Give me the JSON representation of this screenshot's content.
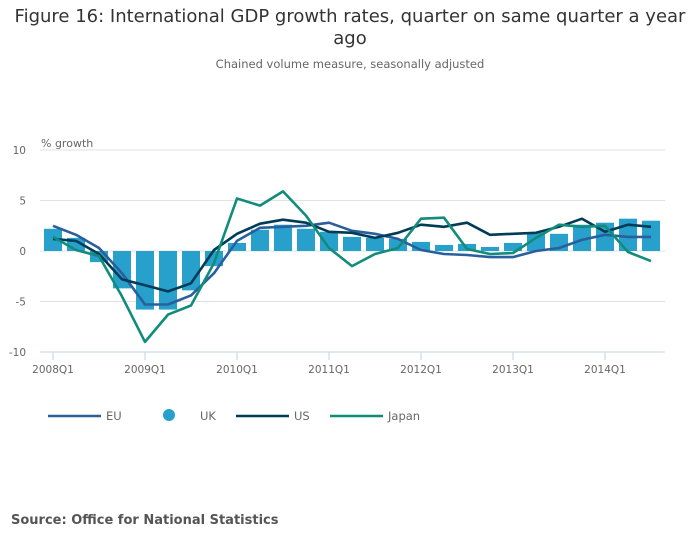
{
  "header": {
    "title": "Figure 16: International GDP growth rates, quarter on same quarter a year ago",
    "subtitle": "Chained volume measure, seasonally adjusted"
  },
  "footer": {
    "source": "Source: Office for National Statistics"
  },
  "chart_data": {
    "type": "bar+line",
    "title": "Figure 16: International GDP growth rates, quarter on same quarter a year ago",
    "subtitle": "Chained volume measure, seasonally adjusted",
    "xlabel": "",
    "ylabel": "% growth",
    "ylim": [
      -10,
      10
    ],
    "yticks": [
      10,
      5,
      0,
      -5,
      -10
    ],
    "grid": true,
    "legend_position": "bottom-left",
    "categories": [
      "2008Q1",
      "2008Q2",
      "2008Q3",
      "2008Q4",
      "2009Q1",
      "2009Q2",
      "2009Q3",
      "2009Q4",
      "2010Q1",
      "2010Q2",
      "2010Q3",
      "2010Q4",
      "2011Q1",
      "2011Q2",
      "2011Q3",
      "2011Q4",
      "2012Q1",
      "2012Q2",
      "2012Q3",
      "2012Q4",
      "2013Q1",
      "2013Q2",
      "2013Q3",
      "2013Q4",
      "2014Q1",
      "2014Q2",
      "2014Q3"
    ],
    "xtick_labels": [
      "2008Q1",
      "2009Q1",
      "2010Q1",
      "2011Q1",
      "2012Q1",
      "2013Q1",
      "2014Q1"
    ],
    "series": [
      {
        "name": "EU",
        "type": "line",
        "color": "#2a5f9e",
        "values": [
          2.5,
          1.6,
          0.3,
          -2.2,
          -5.3,
          -5.3,
          -4.4,
          -2.2,
          1.0,
          2.3,
          2.4,
          2.5,
          2.8,
          2.0,
          1.7,
          1.2,
          0.1,
          -0.3,
          -0.4,
          -0.6,
          -0.6,
          0.0,
          0.3,
          1.1,
          1.6,
          1.4,
          1.4
        ]
      },
      {
        "name": "UK",
        "type": "bar",
        "color": "#27a0cc",
        "values": [
          2.2,
          1.3,
          -1.1,
          -3.7,
          -5.8,
          -5.8,
          -3.9,
          -1.5,
          0.8,
          2.1,
          2.6,
          2.2,
          1.9,
          1.4,
          1.3,
          1.2,
          0.9,
          0.6,
          0.7,
          0.4,
          0.8,
          1.8,
          1.7,
          2.6,
          2.8,
          3.2,
          3.0
        ]
      },
      {
        "name": "US",
        "type": "line",
        "color": "#003c57",
        "values": [
          1.2,
          1.0,
          -0.3,
          -2.8,
          -3.4,
          -4.0,
          -3.2,
          0.1,
          1.7,
          2.7,
          3.1,
          2.8,
          1.9,
          1.8,
          1.3,
          1.8,
          2.6,
          2.4,
          2.8,
          1.6,
          1.7,
          1.8,
          2.4,
          3.2,
          1.9,
          2.6,
          2.4
        ]
      },
      {
        "name": "Japan",
        "type": "line",
        "color": "#118c7b",
        "values": [
          1.4,
          0.1,
          -0.5,
          -4.5,
          -9.0,
          -6.3,
          -5.4,
          -1.2,
          5.2,
          4.5,
          5.9,
          3.5,
          0.3,
          -1.5,
          -0.3,
          0.3,
          3.2,
          3.3,
          0.2,
          -0.3,
          -0.2,
          1.3,
          2.6,
          2.4,
          2.5,
          -0.1,
          -1.0
        ]
      }
    ]
  }
}
